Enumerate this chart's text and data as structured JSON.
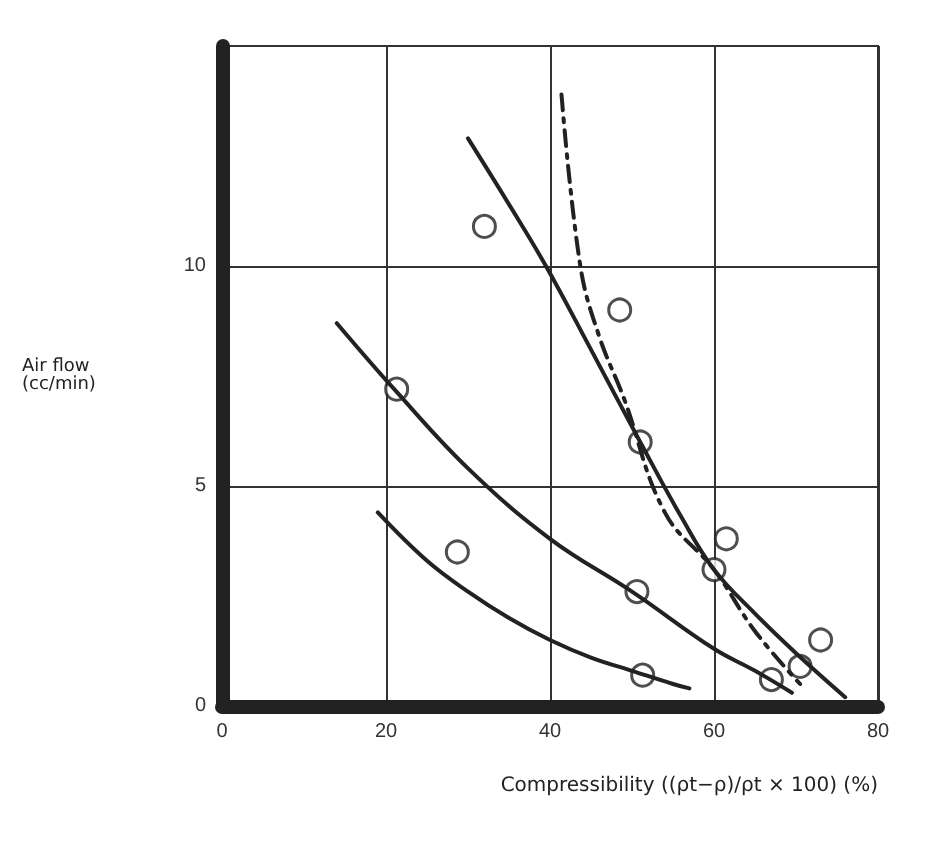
{
  "chart_data": {
    "type": "line",
    "xlabel": "Compressibility ((ρt−ρ)/ρt × 100) (%)",
    "ylabel": "Air flow\n(cc/min)",
    "xlim": [
      0,
      80
    ],
    "ylim": [
      0,
      15
    ],
    "xticks": [
      0,
      20,
      40,
      60,
      80
    ],
    "yticks": [
      0,
      5,
      10
    ],
    "grid": true,
    "series": [
      {
        "color": "#222222",
        "line_style": "solid",
        "marker": "none",
        "x": [
          19,
          25,
          30,
          35,
          40,
          45,
          50,
          55,
          57
        ],
        "values": [
          4.4,
          3.3,
          2.6,
          2.0,
          1.5,
          1.1,
          0.8,
          0.5,
          0.4
        ]
      },
      {
        "color": "#222222",
        "line_style": "solid",
        "marker": "none",
        "x": [
          14,
          21,
          30,
          40,
          50,
          60,
          65,
          69.5
        ],
        "values": [
          8.7,
          7.2,
          5.4,
          3.8,
          2.6,
          1.3,
          0.8,
          0.3
        ]
      },
      {
        "color": "#222222",
        "line_style": "solid",
        "marker": "none",
        "x": [
          30,
          35,
          39.5,
          45,
          51,
          56,
          60,
          65,
          70,
          76
        ],
        "values": [
          12.9,
          11.4,
          10,
          8.1,
          6,
          4.3,
          3.1,
          2.1,
          1.2,
          0.2
        ]
      },
      {
        "color": "#222222",
        "line_style": "dashed",
        "marker": "none",
        "x": [
          41.4,
          43.7,
          46,
          49,
          54,
          60,
          65,
          70.5
        ],
        "values": [
          13.9,
          10,
          8.4,
          7,
          4.4,
          3.1,
          1.7,
          0.5
        ]
      },
      {
        "type": "scatter",
        "color": "#222222",
        "marker": "circle",
        "x": [
          28.7,
          51.3,
          21.3,
          50.6,
          67,
          32,
          51,
          61.5,
          73,
          48.5,
          60,
          70.5
        ],
        "values": [
          3.5,
          0.7,
          7.2,
          2.6,
          0.6,
          10.9,
          6,
          3.8,
          1.5,
          9,
          3.1,
          0.9
        ]
      }
    ]
  }
}
